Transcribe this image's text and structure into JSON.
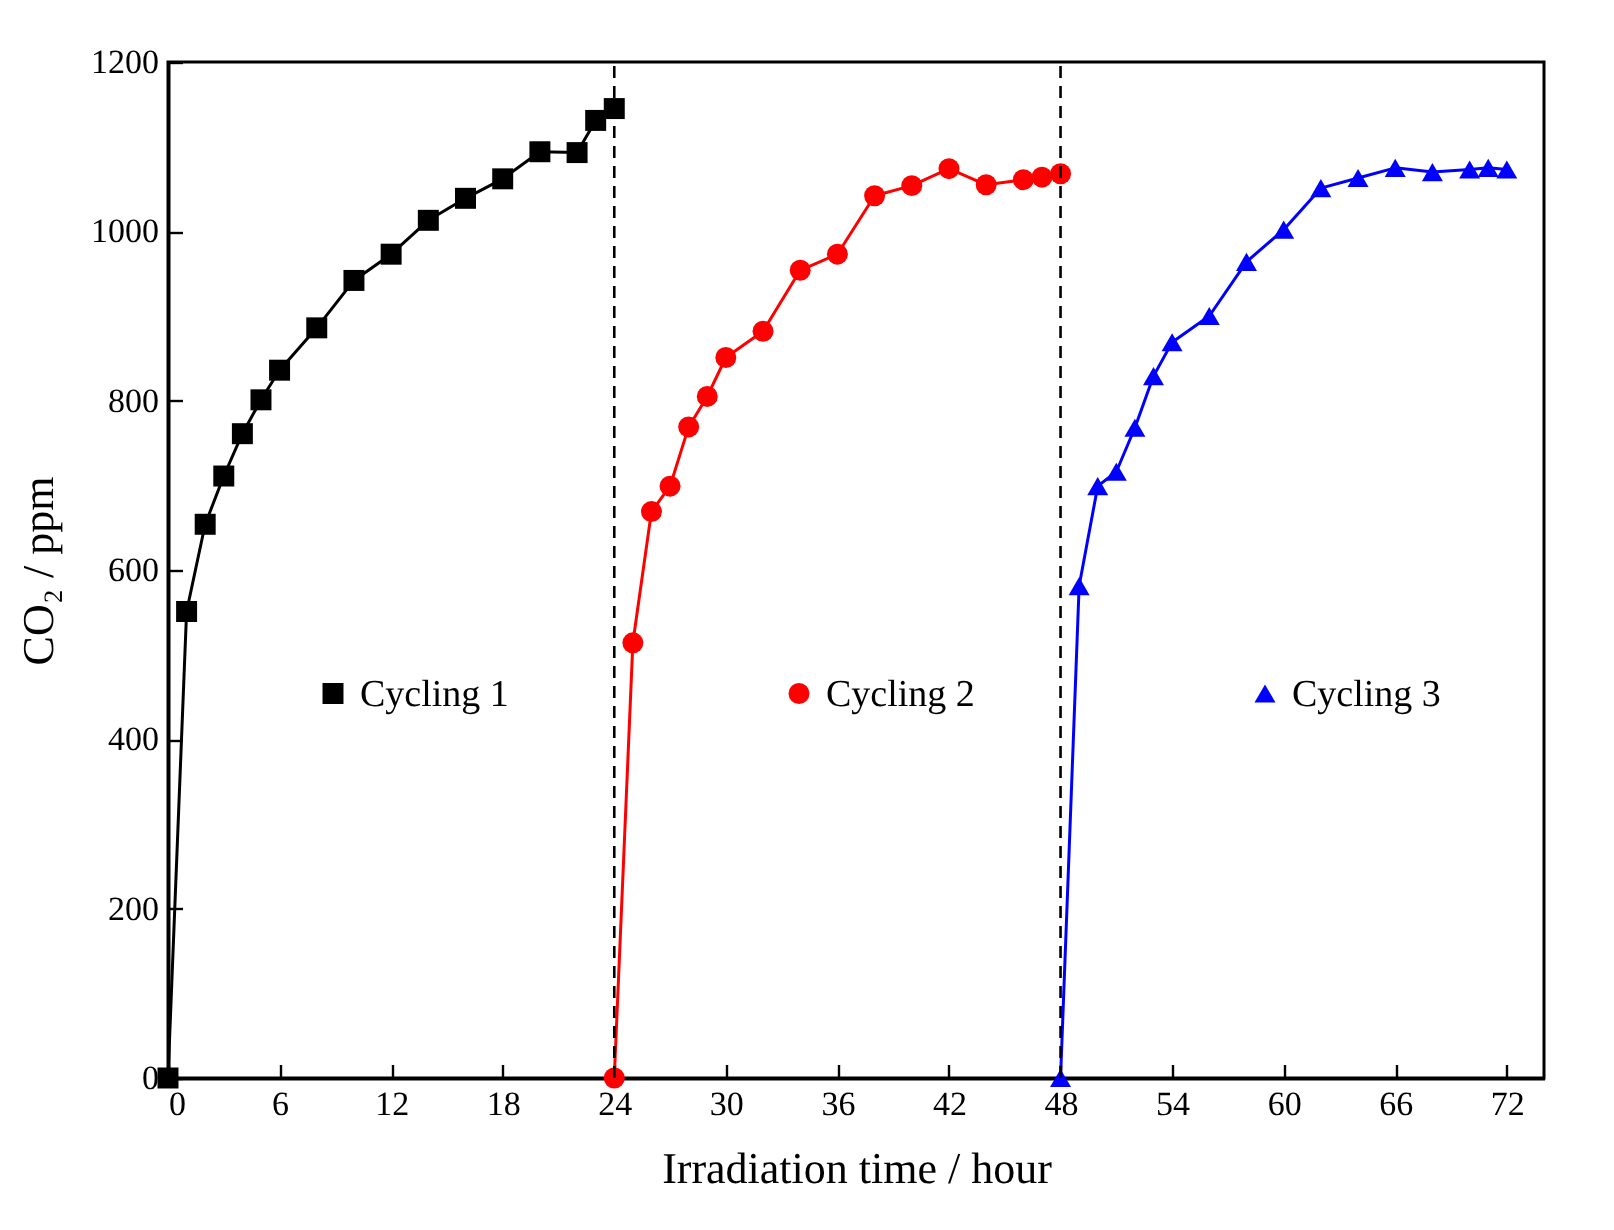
{
  "chart_data": {
    "type": "line",
    "xlabel": "Irradiation time / hour",
    "ylabel": "CO₂ / ppm",
    "xlim": [
      0,
      74
    ],
    "xticks": [
      0,
      6,
      12,
      18,
      24,
      30,
      36,
      42,
      48,
      54,
      60,
      66,
      72
    ],
    "ylim": [
      0,
      1200
    ],
    "yticks": [
      0,
      200,
      400,
      600,
      800,
      1000,
      1200
    ],
    "grid": false,
    "legend": "left",
    "line_style": "solid",
    "series": [
      {
        "name": "Cycling 1",
        "color": "#000000",
        "marker": "square",
        "x": [
          0,
          1,
          2,
          3,
          4,
          5,
          6,
          8,
          10,
          12,
          14,
          16,
          18,
          20,
          22,
          23,
          24
        ],
        "values": [
          0,
          551,
          654,
          711,
          761,
          801,
          836,
          886,
          942,
          973,
          1013,
          1039,
          1062,
          1094,
          1093,
          1131,
          1145
        ]
      },
      {
        "name": "Cycling 2",
        "color": "#ff0000",
        "marker": "circle",
        "x": [
          24,
          25,
          26,
          27,
          28,
          29,
          30,
          32,
          34,
          36,
          38,
          40,
          42,
          44,
          46,
          47,
          48
        ],
        "values": [
          0,
          514,
          669,
          699,
          769,
          805,
          851,
          882,
          954,
          973,
          1042,
          1054,
          1074,
          1055,
          1061,
          1064,
          1068
        ]
      },
      {
        "name": "Cycling 3",
        "color": "#0000ff",
        "marker": "triangle",
        "x": [
          48,
          49,
          50,
          51,
          52,
          53,
          54,
          56,
          58,
          60,
          62,
          64,
          66,
          68,
          70,
          71,
          72
        ],
        "values": [
          0,
          581,
          699,
          716,
          768,
          829,
          869,
          900,
          964,
          1002,
          1051,
          1063,
          1075,
          1070,
          1073,
          1075,
          1073
        ]
      }
    ],
    "ref_lines": [
      {
        "axis": "x",
        "value": 24,
        "color": "#000000",
        "line_style": "dashed"
      },
      {
        "axis": "x",
        "value": 48,
        "color": "#000000",
        "line_style": "dashed"
      }
    ]
  }
}
